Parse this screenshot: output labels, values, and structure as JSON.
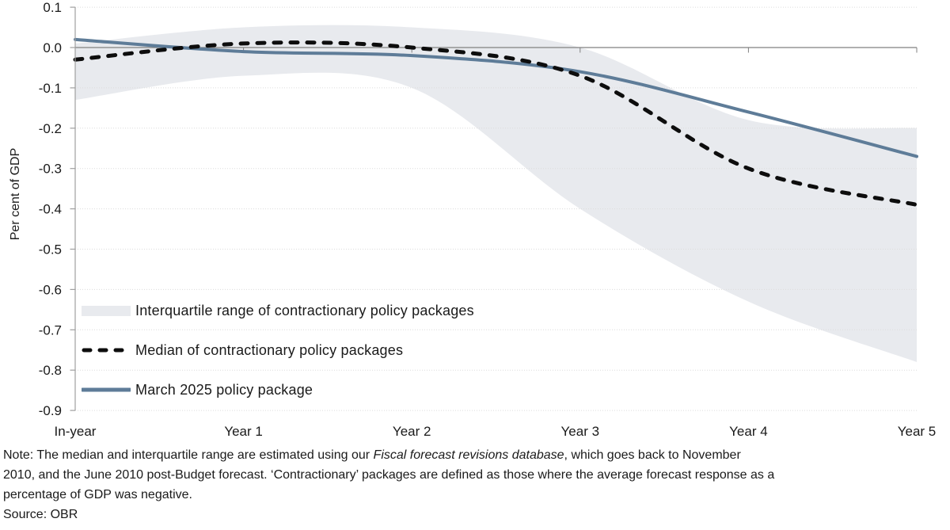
{
  "chart": {
    "ylabel": "Per cent of GDP",
    "y_tick_labels": [
      "0.1",
      "0.0",
      "-0.1",
      "-0.2",
      "-0.3",
      "-0.4",
      "-0.5",
      "-0.6",
      "-0.7",
      "-0.8",
      "-0.9"
    ],
    "x_labels": [
      "In-year",
      "Year 1",
      "Year 2",
      "Year 3",
      "Year 4",
      "Year 5"
    ],
    "legend": [
      {
        "label": "Interquartile range of contractionary policy packages",
        "swatch": "band"
      },
      {
        "label": "Median of contractionary policy packages",
        "swatch": "dashed"
      },
      {
        "label": "March 2025 policy package",
        "swatch": "solid"
      }
    ],
    "colors": {
      "band": "#e8eaee",
      "median": "#0d0d0d",
      "march_2025": "#5e7c98",
      "zero_line": "#808080",
      "axis": "#9f9f9f",
      "gridline": "#dcdcdc",
      "text": "#1a1a1a"
    }
  },
  "chart_data": {
    "type": "line",
    "categories": [
      "In-year",
      "Year 1",
      "Year 2",
      "Year 3",
      "Year 4",
      "Year 5"
    ],
    "series": [
      {
        "name": "Interquartile range upper bound",
        "values": [
          0.01,
          0.05,
          0.05,
          0.0,
          -0.18,
          -0.2
        ]
      },
      {
        "name": "Interquartile range lower bound",
        "values": [
          -0.13,
          -0.07,
          -0.1,
          -0.4,
          -0.63,
          -0.78
        ]
      },
      {
        "name": "Median of contractionary policy packages",
        "values": [
          -0.03,
          0.01,
          0.0,
          -0.07,
          -0.3,
          -0.39
        ]
      },
      {
        "name": "March 2025 policy package",
        "values": [
          0.02,
          -0.01,
          -0.02,
          -0.06,
          -0.16,
          -0.27
        ]
      }
    ],
    "title": "",
    "xlabel": "",
    "ylabel": "Per cent of GDP",
    "ylim": [
      -0.9,
      0.1
    ],
    "ytick_step": 0.1,
    "grid": true,
    "legend_position": "inside-lower-left"
  },
  "note": {
    "line1_pre": "Note: The median and interquartile range are estimated using our ",
    "line1_italic": "Fiscal forecast revisions database",
    "line1_post": ", which goes back to November",
    "line2": "2010, and the June 2010 post-Budget forecast. ‘Contractionary’ packages are defined as those where the average forecast response as a",
    "line3": "percentage of GDP was negative."
  },
  "source_label": "Source: OBR"
}
